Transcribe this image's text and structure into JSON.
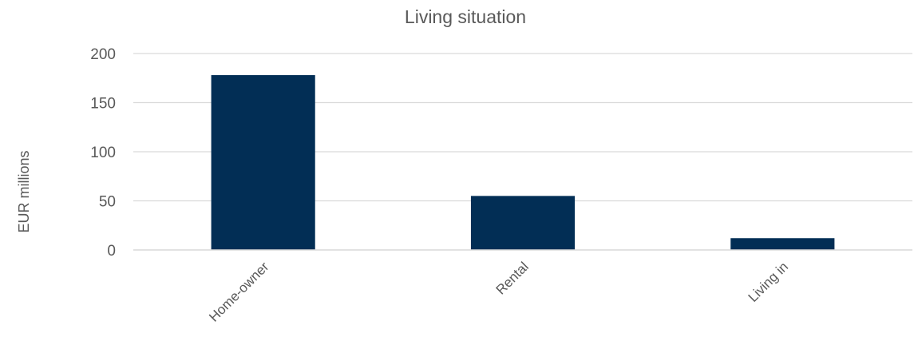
{
  "chart_data": {
    "type": "bar",
    "title": "Living situation",
    "ylabel": "EUR millions",
    "xlabel": "",
    "categories": [
      "Home-owner",
      "Rental",
      "Living in"
    ],
    "values": [
      178,
      55,
      12
    ],
    "ylim": [
      0,
      200
    ],
    "yticks": [
      0,
      50,
      100,
      150,
      200
    ],
    "grid": true,
    "legend": "none",
    "bar_color": "#022e55"
  }
}
